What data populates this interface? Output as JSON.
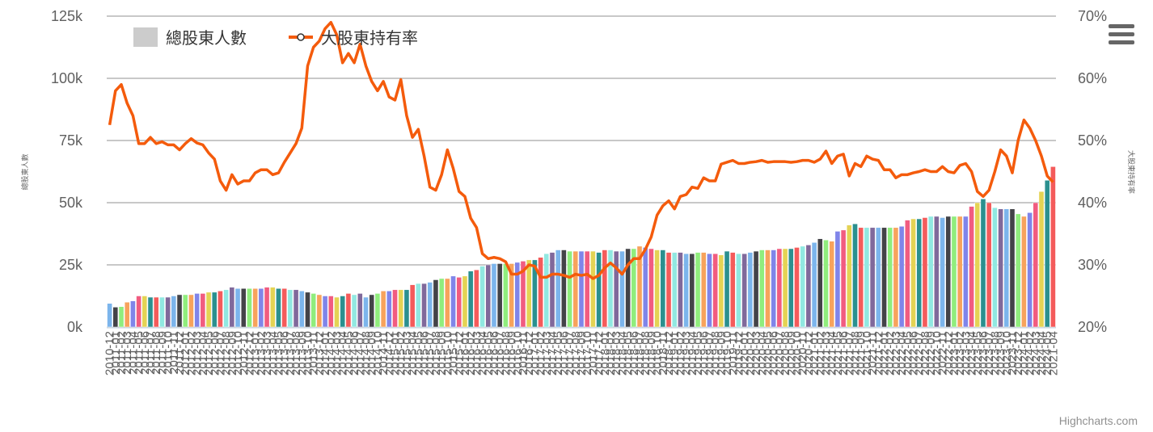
{
  "chart_data": {
    "type": "bar+line",
    "legend": {
      "placement": "top-left",
      "items": [
        "總股東人數",
        "大股東持有率"
      ]
    },
    "y_left": {
      "title": "總股東人數",
      "ticks": [
        "0k",
        "25k",
        "50k",
        "75k",
        "100k",
        "125k"
      ],
      "min": 0,
      "max": 125000
    },
    "y_right": {
      "title": "大股東持有率",
      "ticks": [
        "20%",
        "30%",
        "40%",
        "50%",
        "60%",
        "70%"
      ],
      "min": 20,
      "max": 70
    },
    "x_first_label": "2010-12",
    "x_last_label": "2021-04",
    "grid": true,
    "credits": "Highcharts.com",
    "series": [
      {
        "name": "總股東人數",
        "type": "column",
        "colorByPoint": true,
        "values": [
          9500,
          8000,
          8200,
          10000,
          10500,
          12500,
          12500,
          12000,
          12000,
          12000,
          12000,
          12500,
          13000,
          13000,
          13000,
          13500,
          13500,
          14000,
          14000,
          14500,
          15000,
          16000,
          15500,
          15500,
          15500,
          15500,
          15500,
          16000,
          16000,
          15500,
          15500,
          15000,
          15000,
          14500,
          14000,
          13500,
          13000,
          12500,
          12500,
          12000,
          12500,
          13500,
          13000,
          13500,
          12000,
          13000,
          13500,
          14500,
          14500,
          15000,
          15000,
          15000,
          17000,
          17500,
          17500,
          18000,
          19000,
          19500,
          19500,
          20500,
          20000,
          20500,
          22500,
          23000,
          24500,
          25000,
          25500,
          25500,
          25500,
          25500,
          26000,
          26500,
          27000,
          27000,
          28000,
          29500,
          30000,
          31000,
          31000,
          30500,
          30500,
          30500,
          30500,
          30500,
          30000,
          31000,
          31000,
          30500,
          30500,
          31500,
          31500,
          32500,
          32000,
          31500,
          31000,
          31000,
          30000,
          30000,
          30000,
          29500,
          29500,
          30000,
          30000,
          29500,
          29500,
          29000,
          30500,
          30000,
          29500,
          29500,
          30000,
          30500,
          31000,
          31000,
          31000,
          31500,
          31500,
          31500,
          32000,
          32500,
          33000,
          34000,
          35500,
          35000,
          34500,
          38500,
          39000,
          41000,
          41500,
          40000,
          40000,
          40000,
          40000,
          40000,
          40000,
          40000,
          40500,
          43000,
          43500,
          43500,
          44000,
          44500,
          44500,
          44000,
          44500,
          44500,
          44500,
          44500,
          48500,
          50000,
          51500,
          50000,
          48000,
          47500,
          47500,
          47500,
          45500,
          44500,
          46000,
          50000,
          54500,
          59000,
          64500
        ]
      },
      {
        "name": "大股東持有率",
        "type": "line",
        "color": "#f45b0c",
        "values": [
          52.5,
          58,
          59,
          56,
          54,
          49.5,
          49.5,
          50.5,
          49.5,
          49.8,
          49.3,
          49.3,
          48.5,
          49.5,
          50.3,
          49.6,
          49.3,
          48,
          47,
          43.5,
          42,
          44.5,
          43,
          43.5,
          43.5,
          44.8,
          45.3,
          45.3,
          44.5,
          44.8,
          46.5,
          48,
          49.5,
          52,
          62,
          65,
          66,
          68,
          69,
          67,
          62.5,
          64,
          62.5,
          65.5,
          62,
          59.5,
          58,
          59.5,
          57,
          56.5,
          59.8,
          54,
          50.5,
          51.8,
          47.5,
          42.5,
          42,
          44.5,
          48.5,
          45.5,
          41.8,
          41,
          37.5,
          36,
          31.8,
          31,
          31.2,
          31,
          30.5,
          28.5,
          28.5,
          29,
          30,
          29.8,
          28,
          28,
          28.5,
          28.5,
          28.3,
          28,
          28.5,
          28.3,
          28.5,
          27.8,
          28.3,
          29.5,
          30.3,
          29.5,
          28.5,
          30,
          31,
          31,
          32.5,
          34.5,
          38,
          39.5,
          40.3,
          39,
          41,
          41.3,
          42.5,
          42.3,
          44,
          43.5,
          43.5,
          46.2,
          46.5,
          46.8,
          46.3,
          46.3,
          46.5,
          46.6,
          46.8,
          46.5,
          46.6,
          46.6,
          46.6,
          46.5,
          46.6,
          46.8,
          46.8,
          46.5,
          47,
          48.3,
          46.3,
          47.5,
          47.8,
          44.3,
          46.3,
          45.8,
          47.5,
          47,
          46.8,
          45.3,
          45.3,
          44,
          44.5,
          44.5,
          44.8,
          45,
          45.3,
          45,
          45,
          45.8,
          45,
          44.8,
          46,
          46.3,
          45,
          41.8,
          41,
          42,
          45,
          48.5,
          47.5,
          44.8,
          50,
          53.3,
          52,
          50,
          47.5,
          44.3,
          43.3
        ]
      }
    ]
  },
  "colors": [
    "#7cb5ec",
    "#434348",
    "#90ed7d",
    "#f7a35c",
    "#8085e9",
    "#f15c80",
    "#e4d354",
    "#2b908f",
    "#f45b5b",
    "#91e8e1",
    "#80699b"
  ],
  "menu": {
    "icon": "hamburger-menu-icon"
  }
}
